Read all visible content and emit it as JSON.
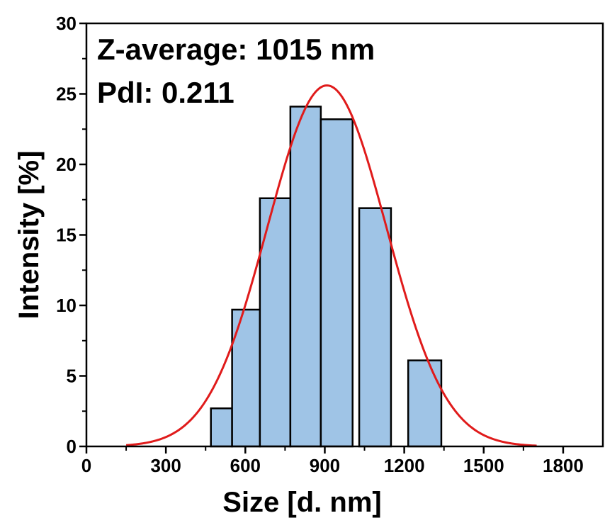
{
  "chart_data": {
    "type": "bar",
    "xlabel": "Size [d. nm]",
    "ylabel": "Intensity [%]",
    "xlim": [
      0,
      1950
    ],
    "ylim": [
      0,
      30
    ],
    "x_ticks": [
      0,
      300,
      600,
      900,
      1200,
      1500,
      1800
    ],
    "y_ticks": [
      0,
      5,
      10,
      15,
      20,
      25,
      30
    ],
    "annotations": [
      "Z-average: 1015 nm",
      "PdI: 0.211"
    ],
    "bars": [
      {
        "x0": 470,
        "x1": 550,
        "value": 2.7
      },
      {
        "x0": 550,
        "x1": 655,
        "value": 9.7
      },
      {
        "x0": 655,
        "x1": 770,
        "value": 17.6
      },
      {
        "x0": 770,
        "x1": 885,
        "value": 24.1
      },
      {
        "x0": 885,
        "x1": 1005,
        "value": 23.2
      },
      {
        "x0": 1030,
        "x1": 1150,
        "value": 16.9
      },
      {
        "x0": 1215,
        "x1": 1340,
        "value": 6.1
      }
    ],
    "fit": {
      "type": "gaussian",
      "mean": 908,
      "sigma": 225,
      "amplitude": 25.6,
      "color": "#e01b1b"
    },
    "bar_fill": "#9fc4e6",
    "bar_stroke": "#000000",
    "grid": false
  }
}
